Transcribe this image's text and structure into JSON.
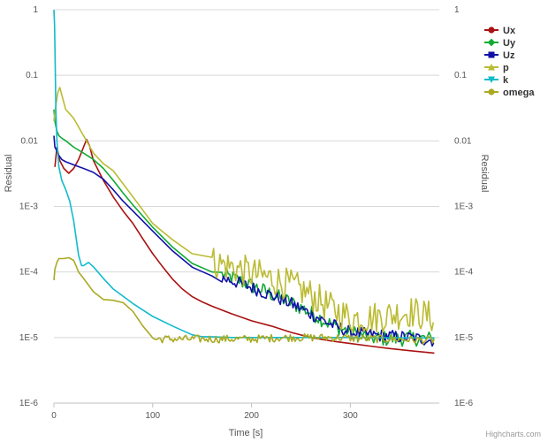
{
  "chart_data": {
    "type": "line",
    "title": "",
    "xlabel": "Time [s]",
    "ylabel": "Residual",
    "ylabel_right": "Residual",
    "yscale": "log",
    "xlim": [
      0,
      390
    ],
    "ylim": [
      1e-06,
      1
    ],
    "x_ticks": [
      0,
      100,
      200,
      300
    ],
    "x_tick_labels": [
      "0",
      "100",
      "200",
      "300"
    ],
    "y_ticks": [
      1,
      0.1,
      0.01,
      0.001,
      0.0001,
      1e-05,
      1e-06
    ],
    "y_tick_labels": [
      "1",
      "0.1",
      "0.01",
      "1E-3",
      "1E-4",
      "1E-5",
      "1E-6"
    ],
    "grid": true,
    "legend_position": "top-right",
    "credits": "Highcharts.com",
    "series": [
      {
        "name": "Ux",
        "color": "#aa1111",
        "marker": "circle",
        "x": [
          1,
          3,
          6,
          10,
          15,
          20,
          25,
          30,
          33,
          36,
          40,
          50,
          60,
          70,
          80,
          90,
          100,
          110,
          120,
          130,
          140,
          150,
          160,
          180,
          200,
          220,
          240,
          260,
          280,
          300,
          320,
          340,
          360,
          385
        ],
        "y": [
          0.004,
          0.008,
          0.005,
          0.0038,
          0.0032,
          0.0038,
          0.0052,
          0.008,
          0.0105,
          0.0085,
          0.005,
          0.0025,
          0.0014,
          0.00085,
          0.00055,
          0.00032,
          0.00019,
          0.00012,
          7.8e-05,
          5.5e-05,
          4.2e-05,
          3.5e-05,
          3e-05,
          2.3e-05,
          1.8e-05,
          1.5e-05,
          1.2e-05,
          1e-05,
          8.9e-06,
          8.1e-06,
          7.4e-06,
          6.8e-06,
          6.3e-06,
          5.8e-06
        ]
      },
      {
        "name": "Uy",
        "color": "#11aa33",
        "marker": "diamond",
        "x": [
          0,
          1,
          3,
          5,
          8,
          12,
          20,
          30,
          40,
          50,
          60,
          70,
          80,
          100,
          120,
          140,
          160,
          180,
          200,
          220,
          240,
          260,
          280,
          300,
          320,
          340,
          360,
          385
        ],
        "y": [
          0.03,
          0.02,
          0.014,
          0.012,
          0.011,
          0.01,
          0.008,
          0.0065,
          0.0052,
          0.0038,
          0.0025,
          0.0016,
          0.00105,
          0.00048,
          0.00024,
          0.000135,
          0.0001,
          8.2e-05,
          6.2e-05,
          4.6e-05,
          3.4e-05,
          2.4e-05,
          1.6e-05,
          1.2e-05,
          1e-05,
          9.5e-06,
          9.8e-06,
          9.5e-06
        ],
        "noise": 0.12,
        "noise_start": 170
      },
      {
        "name": "Uz",
        "color": "#1111aa",
        "marker": "square",
        "x": [
          0,
          1,
          3,
          5,
          8,
          12,
          20,
          30,
          40,
          50,
          60,
          70,
          80,
          100,
          120,
          140,
          160,
          180,
          200,
          220,
          240,
          260,
          280,
          300,
          320,
          340,
          360,
          385
        ],
        "y": [
          0.012,
          0.008,
          0.007,
          0.006,
          0.0052,
          0.0048,
          0.0043,
          0.0038,
          0.0033,
          0.0026,
          0.0018,
          0.0012,
          0.00085,
          0.00042,
          0.00021,
          0.000118,
          8.7e-05,
          7.4e-05,
          5.8e-05,
          4.4e-05,
          3.3e-05,
          2.3e-05,
          1.6e-05,
          1.2e-05,
          1.1e-05,
          1.05e-05,
          1e-05,
          9e-06
        ],
        "noise": 0.1,
        "noise_start": 170
      },
      {
        "name": "p",
        "color": "#bbbb33",
        "marker": "triangle",
        "x": [
          0,
          2,
          4,
          6,
          8,
          12,
          20,
          30,
          40,
          50,
          60,
          80,
          100,
          120,
          140,
          160,
          180,
          200,
          220,
          240,
          260,
          280,
          300,
          320,
          340,
          360,
          385
        ],
        "y": [
          0.02,
          0.035,
          0.055,
          0.065,
          0.05,
          0.03,
          0.022,
          0.012,
          0.0065,
          0.0045,
          0.0035,
          0.0014,
          0.00055,
          0.00031,
          0.00019,
          0.000145,
          0.00012,
          9.5e-05,
          8e-05,
          6.2e-05,
          4.5e-05,
          2.8e-05,
          2e-05,
          2e-05,
          2.2e-05,
          2.5e-05,
          2e-05
        ],
        "noise": 0.25,
        "noise_start": 160
      },
      {
        "name": "k",
        "color": "#11bbcc",
        "marker": "triangle-down",
        "x": [
          0,
          0.6,
          1.2,
          2,
          3,
          5,
          8,
          12,
          16,
          20,
          25,
          28,
          30,
          35,
          40,
          50,
          60,
          80,
          100,
          120,
          140,
          150,
          160,
          180,
          200,
          250,
          300,
          350,
          385
        ],
        "y": [
          1.0,
          0.6,
          0.2,
          0.03,
          0.01,
          0.004,
          0.0025,
          0.0018,
          0.0012,
          0.0006,
          0.00018,
          0.000125,
          0.000125,
          0.00014,
          0.00012,
          8e-05,
          5.5e-05,
          3.3e-05,
          2.1e-05,
          1.5e-05,
          1.1e-05,
          1.03e-05,
          1.03e-05,
          1e-05,
          1e-05,
          1e-05,
          1e-05,
          9.9e-06,
          9.9e-06
        ]
      },
      {
        "name": "omega",
        "color": "#aaaa22",
        "marker": "circle",
        "x": [
          0,
          1,
          3,
          5,
          10,
          15,
          20,
          25,
          30,
          40,
          50,
          60,
          70,
          80,
          90,
          100,
          110,
          120,
          140,
          160,
          180,
          200,
          220,
          240,
          260,
          280,
          300,
          320,
          340,
          360,
          385
        ],
        "y": [
          7.5e-05,
          0.00011,
          0.00014,
          0.00016,
          0.00016,
          0.000165,
          0.00015,
          0.0001,
          8e-05,
          5e-05,
          3.8e-05,
          3.7e-05,
          3.4e-05,
          2.5e-05,
          1.5e-05,
          9.5e-06,
          9.5e-06,
          9.5e-06,
          9.5e-06,
          9.5e-06,
          9.5e-06,
          9.5e-06,
          9.8e-06,
          1e-05,
          1e-05,
          1e-05,
          9.8e-06,
          9.6e-06,
          9.5e-06,
          9.3e-06,
          9e-06
        ],
        "noise": 0.06,
        "noise_start": 100
      }
    ]
  }
}
